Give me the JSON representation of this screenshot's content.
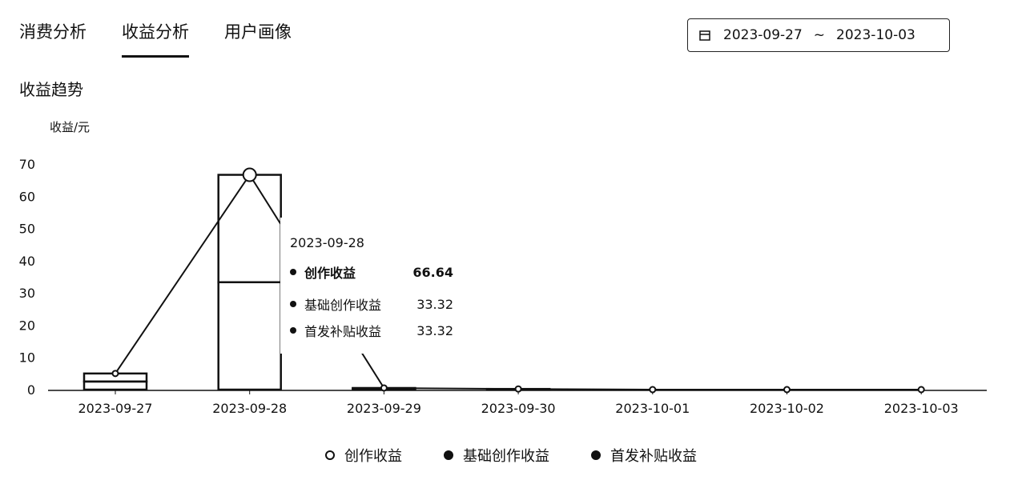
{
  "tabs": [
    {
      "label": "消费分析",
      "active": false
    },
    {
      "label": "收益分析",
      "active": true
    },
    {
      "label": "用户画像",
      "active": false
    }
  ],
  "date_range": {
    "icon": "calendar-icon",
    "start": "2023-09-27",
    "separator": "~",
    "end": "2023-10-03"
  },
  "section_title": "收益趋势",
  "chart_data": {
    "type": "bar",
    "ylabel": "收益/元",
    "ylim": [
      0,
      70
    ],
    "yticks": [
      0,
      10,
      20,
      30,
      40,
      50,
      60,
      70
    ],
    "categories": [
      "2023-09-27",
      "2023-09-28",
      "2023-09-29",
      "2023-09-30",
      "2023-10-01",
      "2023-10-02",
      "2023-10-03"
    ],
    "series": [
      {
        "name": "创作收益",
        "type": "line",
        "values": [
          5.0,
          66.64,
          0.5,
          0.2,
          0,
          0,
          0
        ]
      },
      {
        "name": "基础创作收益",
        "type": "bar",
        "values": [
          2.5,
          33.32,
          0.3,
          0.1,
          0,
          0,
          0
        ]
      },
      {
        "name": "首发补贴收益",
        "type": "bar",
        "values": [
          2.5,
          33.32,
          0.2,
          0.1,
          0,
          0,
          0
        ]
      }
    ],
    "legend_position": "bottom",
    "grid": false
  },
  "tooltip": {
    "date": "2023-09-28",
    "rows": [
      {
        "name": "创作收益",
        "value": "66.64",
        "bold": true
      },
      {
        "name": "基础创作收益",
        "value": "33.32",
        "bold": false
      },
      {
        "name": "首发补贴收益",
        "value": "33.32",
        "bold": false
      }
    ]
  },
  "colors": {
    "ink": "#111111",
    "background": "#ffffff"
  }
}
